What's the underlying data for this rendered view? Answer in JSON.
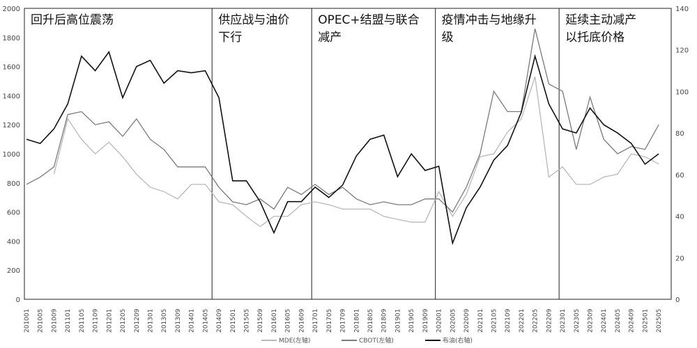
{
  "chart_data": {
    "type": "line",
    "title": "",
    "x": [
      "201001",
      "201005",
      "201009",
      "201101",
      "201105",
      "201109",
      "201201",
      "201205",
      "201209",
      "201301",
      "201305",
      "201309",
      "201401",
      "201405",
      "201409",
      "201501",
      "201505",
      "201509",
      "201601",
      "201605",
      "201609",
      "201701",
      "201705",
      "201709",
      "201801",
      "201805",
      "201809",
      "201901",
      "201905",
      "201909",
      "202001",
      "202005",
      "202009",
      "202101",
      "202105",
      "202109",
      "202201",
      "202205",
      "202209",
      "202301",
      "202305",
      "202309",
      "202401",
      "202405",
      "202409",
      "202501",
      "202505"
    ],
    "y_left_lim": [
      0,
      2000
    ],
    "y_left_ticks": [
      0,
      200,
      400,
      600,
      800,
      1000,
      1200,
      1400,
      1600,
      1800,
      2000
    ],
    "y_right_lim": [
      0,
      140
    ],
    "y_right_ticks": [
      0,
      20,
      40,
      60,
      80,
      100,
      120,
      140
    ],
    "grid": false,
    "legend_position": "bottom",
    "series": [
      {
        "name": "MDE(左轴)",
        "axis": "left",
        "color": "#b8b8b8",
        "values": [
          null,
          null,
          860,
          1240,
          1100,
          1000,
          1080,
          980,
          860,
          770,
          740,
          690,
          790,
          790,
          670,
          650,
          570,
          500,
          570,
          570,
          650,
          670,
          650,
          620,
          620,
          620,
          570,
          550,
          530,
          530,
          740,
          570,
          720,
          980,
          1000,
          1150,
          1240,
          1530,
          840,
          910,
          790,
          790,
          840,
          860,
          1000,
          980,
          930
        ]
      },
      {
        "name": "CBOT(左轴)",
        "axis": "left",
        "color": "#7a7a7a",
        "values": [
          790,
          840,
          910,
          1270,
          1290,
          1200,
          1220,
          1120,
          1240,
          1100,
          1030,
          910,
          910,
          910,
          770,
          670,
          650,
          690,
          620,
          770,
          720,
          790,
          720,
          770,
          690,
          650,
          670,
          650,
          650,
          690,
          690,
          600,
          770,
          1000,
          1430,
          1290,
          1290,
          1860,
          1480,
          1430,
          1030,
          1390,
          1100,
          1000,
          1050,
          1030,
          1200
        ]
      },
      {
        "name": "布油(右轴)",
        "axis": "right",
        "color": "#111111",
        "values": [
          77,
          75,
          82,
          94,
          117,
          110,
          119,
          97,
          112,
          115,
          104,
          110,
          109,
          110,
          97,
          57,
          57,
          47,
          32,
          47,
          47,
          54,
          49,
          55,
          69,
          77,
          79,
          59,
          70,
          62,
          64,
          27,
          44,
          54,
          67,
          74,
          90,
          117,
          94,
          82,
          80,
          92,
          84,
          80,
          75,
          65,
          70
        ]
      }
    ],
    "annotations": [
      "回升后高位震荡",
      "供应战与油价下行",
      "OPEC+结盟与联合减产",
      "疫情冲击与地缘升级",
      "延续主动减产以托底价格"
    ],
    "annotation_lines": [
      "回升后高位震荡",
      "供应战与油价|下行",
      "OPEC+结盟与联合|减产",
      "疫情冲击与地缘升|级",
      "延续主动减产|以托底价格"
    ],
    "period_dividers": [
      "201407",
      "201612",
      "201912",
      "202212"
    ]
  }
}
